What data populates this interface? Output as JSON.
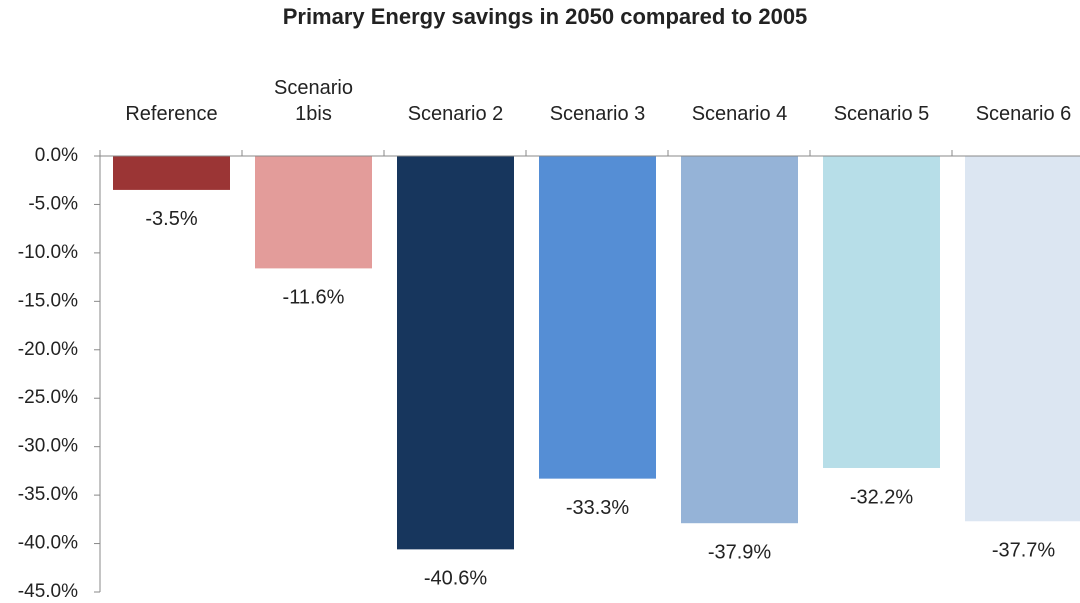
{
  "chart_data": {
    "type": "bar",
    "title": "Primary Energy savings in 2050 compared to 2005",
    "categories": [
      "Reference",
      "Scenario 1bis",
      "Scenario 2",
      "Scenario 3",
      "Scenario 4",
      "Scenario 5",
      "Scenario 6"
    ],
    "values": [
      -3.5,
      -11.6,
      -40.6,
      -33.3,
      -37.9,
      -32.2,
      -37.7
    ],
    "value_labels": [
      "-3.5%",
      "-11.6%",
      "-40.6%",
      "-33.3%",
      "-37.9%",
      "-32.2%",
      "-37.7%"
    ],
    "colors": [
      "#9b3535",
      "#e39c9a",
      "#17365d",
      "#558ed5",
      "#95b3d7",
      "#b7dee8",
      "#dce6f2"
    ],
    "ylim": [
      -45,
      0
    ],
    "yticks": [
      {
        "value": 0,
        "label": "0.0%"
      },
      {
        "value": -5,
        "label": "-5.0%"
      },
      {
        "value": -10,
        "label": "-10.0%"
      },
      {
        "value": -15,
        "label": "-15.0%"
      },
      {
        "value": -20,
        "label": "-20.0%"
      },
      {
        "value": -25,
        "label": "-25.0%"
      },
      {
        "value": -30,
        "label": "-30.0%"
      },
      {
        "value": -35,
        "label": "-35.0%"
      },
      {
        "value": -40,
        "label": "-40.0%"
      },
      {
        "value": -45,
        "label": "-45.0%"
      }
    ],
    "grid": false
  }
}
